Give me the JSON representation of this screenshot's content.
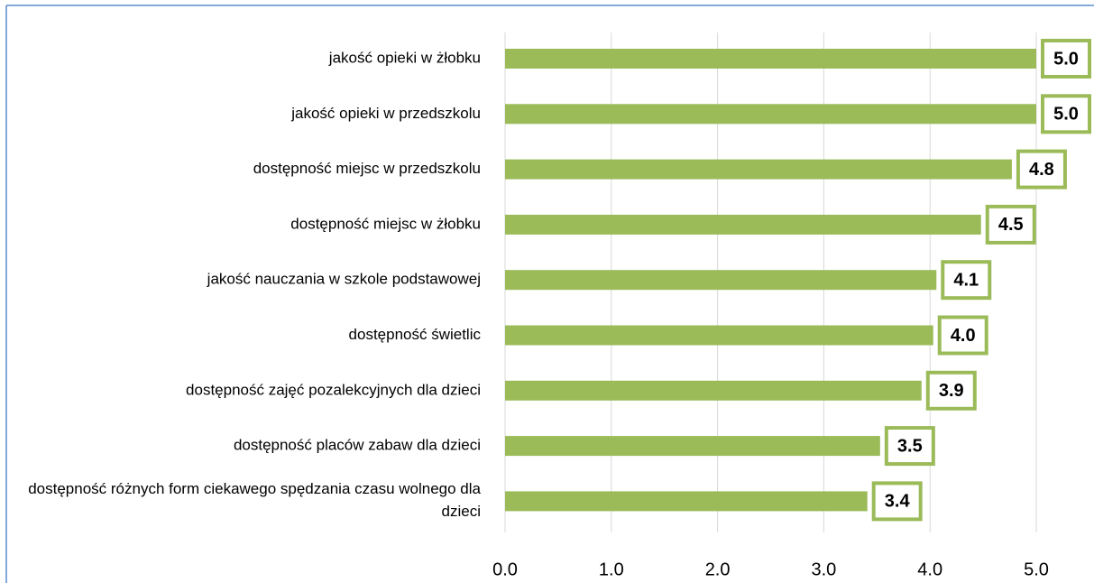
{
  "chart_data": {
    "type": "bar",
    "orientation": "horizontal",
    "categories": [
      "jakość opieki w żłobku",
      "jakość opieki w przedszkolu",
      "dostępność miejsc w przedszkolu",
      "dostępność miejsc w żłobku",
      "jakość nauczania w szkole podstawowej",
      "dostępność świetlic",
      "dostępność zajęć pozalekcyjnych dla dzieci",
      "dostępność placów zabaw dla dzieci",
      "dostępność różnych form ciekawego spędzania czasu wolnego dla dzieci"
    ],
    "values": [
      5.0,
      5.0,
      4.77,
      4.48,
      4.06,
      4.03,
      3.92,
      3.53,
      3.41
    ],
    "value_labels": [
      "5.0",
      "5.0",
      "4.8",
      "4.5",
      "4.1",
      "4.0",
      "3.9",
      "3.5",
      "3.4"
    ],
    "color": "#9bbb59",
    "xlim": [
      0,
      5
    ],
    "xticks": [
      {
        "value": 0,
        "label": "0.0"
      },
      {
        "value": 1,
        "label": "1.0"
      },
      {
        "value": 2,
        "label": "2.0"
      },
      {
        "value": 3,
        "label": "3.0"
      },
      {
        "value": 4,
        "label": "4.0"
      },
      {
        "value": 5,
        "label": "5.0"
      }
    ],
    "grid": true
  }
}
